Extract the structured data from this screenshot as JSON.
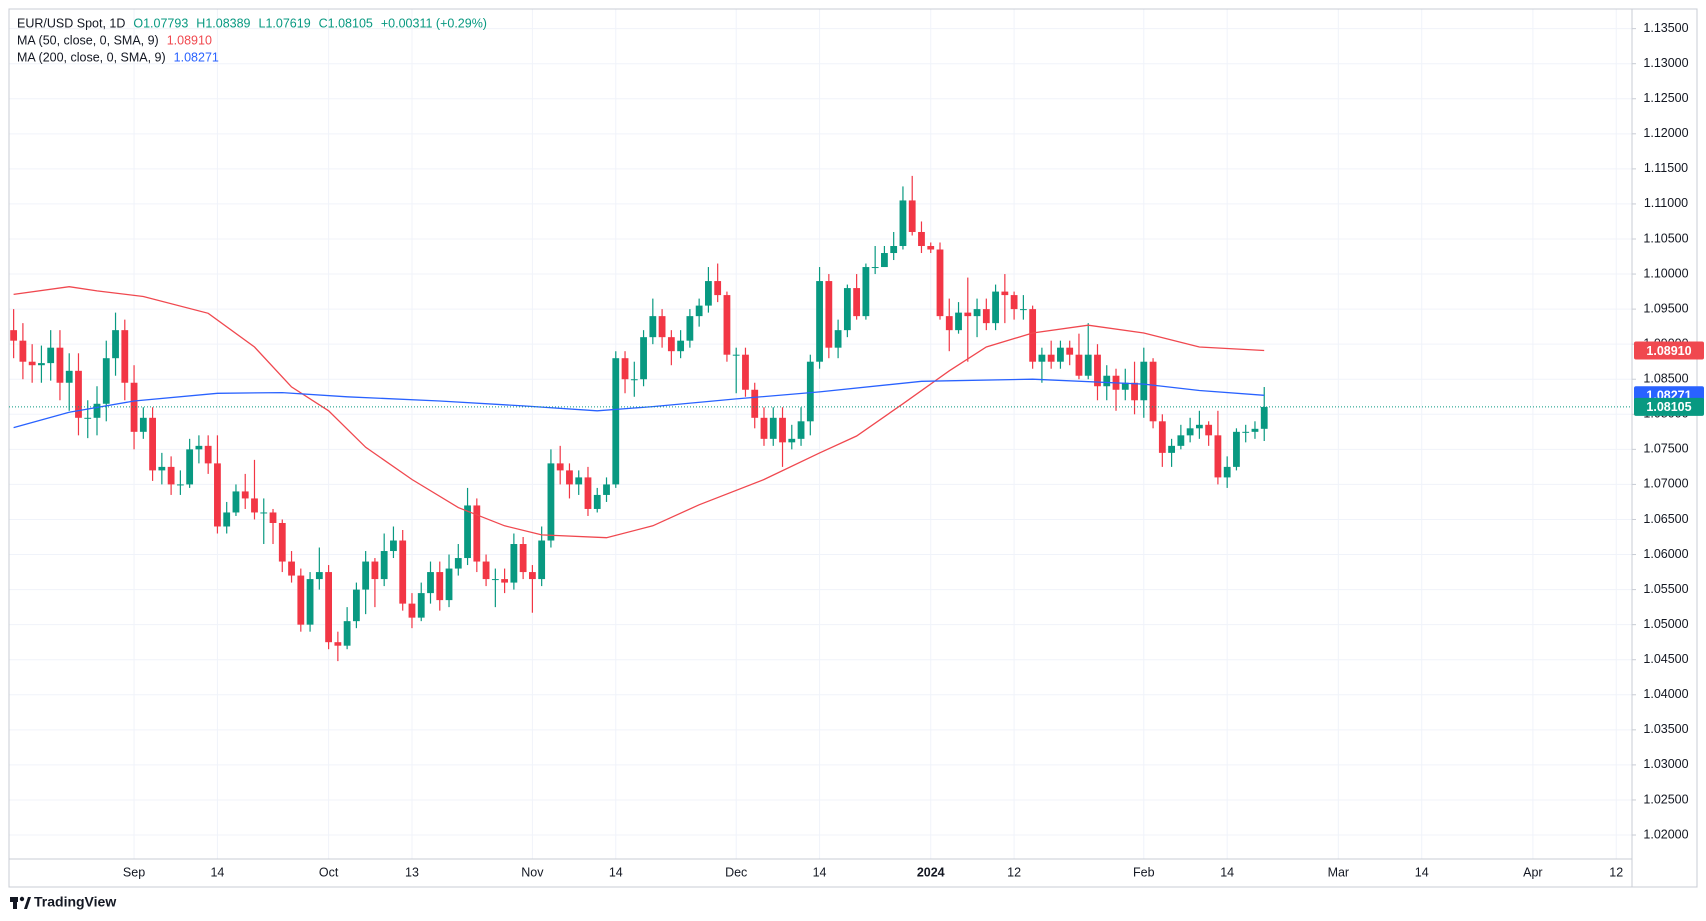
{
  "chart_data": {
    "type": "candlestick",
    "symbol": "EUR/USD Spot, 1D",
    "ohlc_labels": [
      "O1.07793",
      "H1.08389",
      "L1.07619",
      "C1.08105"
    ],
    "change_label": "+0.00311 (+0.29%)",
    "price_label": "1.08105",
    "up_color": "#089981",
    "down_color": "#f23645",
    "grid": true,
    "brand": "TradingView",
    "x": [
      -13,
      -12,
      -11,
      -10,
      -9,
      -8,
      -7,
      -6,
      -5,
      -4,
      -3,
      -2,
      -1,
      0,
      1,
      2,
      3,
      4,
      5,
      6,
      7,
      8,
      9,
      10,
      11,
      12,
      13,
      14,
      15,
      16,
      17,
      18,
      19,
      20,
      21,
      22,
      23,
      24,
      25,
      26,
      27,
      28,
      29,
      30,
      31,
      32,
      33,
      34,
      35,
      36,
      37,
      38,
      39,
      40,
      41,
      42,
      43,
      44,
      45,
      46,
      47,
      48,
      49,
      50,
      51,
      52,
      53,
      54,
      55,
      56,
      57,
      58,
      59,
      60,
      61,
      62,
      63,
      64,
      65,
      66,
      67,
      68,
      69,
      70,
      71,
      72,
      73,
      74,
      75,
      76,
      77,
      78,
      79,
      80,
      81,
      82,
      83,
      84,
      85,
      86,
      87,
      88,
      89,
      90,
      91,
      92,
      93,
      94,
      95,
      96,
      97,
      98,
      99,
      100,
      101,
      102,
      103,
      104,
      105,
      106,
      107,
      108,
      109,
      110,
      111,
      112,
      113,
      114,
      115,
      116,
      117,
      118,
      119,
      120,
      121,
      122
    ],
    "open": [
      1.092,
      1.0905,
      1.0875,
      1.087,
      1.0873,
      1.0895,
      1.0845,
      1.0862,
      1.0795,
      1.0795,
      1.0815,
      1.088,
      1.092,
      1.0845,
      1.0775,
      1.0795,
      1.072,
      1.0725,
      1.07,
      1.07,
      1.075,
      1.0755,
      1.073,
      1.064,
      1.066,
      1.069,
      1.068,
      1.066,
      1.066,
      1.0645,
      1.059,
      1.057,
      1.05,
      1.0565,
      1.0575,
      1.0475,
      1.047,
      1.0505,
      1.055,
      1.059,
      1.0565,
      1.0605,
      1.062,
      1.053,
      1.051,
      1.0545,
      1.0575,
      1.0535,
      1.058,
      1.0595,
      1.067,
      1.059,
      1.0565,
      1.0565,
      1.056,
      1.0615,
      1.0575,
      1.0565,
      1.062,
      1.073,
      1.072,
      1.07,
      1.071,
      1.0665,
      1.0685,
      1.07,
      1.088,
      1.085,
      1.085,
      1.091,
      1.094,
      1.091,
      1.089,
      1.0905,
      1.094,
      1.0955,
      1.099,
      1.097,
      1.0885,
      1.0885,
      1.0835,
      1.0795,
      1.0765,
      1.0795,
      1.076,
      1.0765,
      1.079,
      1.0875,
      1.099,
      1.0895,
      1.092,
      1.098,
      1.094,
      1.101,
      1.101,
      1.103,
      1.104,
      1.1105,
      1.106,
      1.104,
      1.1035,
      1.094,
      1.092,
      1.0945,
      1.094,
      1.095,
      1.093,
      1.0975,
      1.097,
      1.095,
      1.095,
      1.0875,
      1.0885,
      1.0875,
      1.0895,
      1.0885,
      1.0855,
      1.0885,
      1.084,
      1.0855,
      1.0835,
      1.0845,
      1.082,
      1.0875,
      1.079,
      1.0745,
      1.0755,
      1.077,
      1.078,
      1.0785,
      1.077,
      1.071,
      1.0725,
      1.0775,
      1.0775,
      1.07793
    ],
    "high": [
      1.095,
      1.093,
      1.09,
      1.0898,
      1.092,
      1.092,
      1.0887,
      1.0887,
      1.082,
      1.084,
      1.0905,
      1.0945,
      1.0935,
      1.087,
      1.081,
      1.081,
      1.0745,
      1.074,
      1.072,
      1.0765,
      1.077,
      1.077,
      1.077,
      1.0675,
      1.07,
      1.0715,
      1.0735,
      1.068,
      1.0665,
      1.065,
      1.0605,
      1.058,
      1.0575,
      1.061,
      1.0585,
      1.049,
      1.0525,
      1.056,
      1.0605,
      1.0595,
      1.063,
      1.064,
      1.0635,
      1.0545,
      1.056,
      1.059,
      1.059,
      1.06,
      1.0615,
      1.0695,
      1.068,
      1.06,
      1.058,
      1.058,
      1.063,
      1.0625,
      1.0585,
      1.064,
      1.075,
      1.0755,
      1.073,
      1.072,
      1.0725,
      1.0695,
      1.071,
      1.089,
      1.089,
      1.0875,
      1.092,
      1.0965,
      1.095,
      1.092,
      1.092,
      1.095,
      1.0965,
      1.101,
      1.1015,
      1.0975,
      1.0895,
      1.0895,
      1.0845,
      1.081,
      1.081,
      1.081,
      1.0785,
      1.081,
      1.0885,
      1.101,
      1.1,
      1.0935,
      1.0985,
      1.1,
      1.1015,
      1.104,
      1.104,
      1.106,
      1.1125,
      1.114,
      1.1075,
      1.1045,
      1.1045,
      1.0965,
      1.096,
      1.0995,
      1.0965,
      1.0965,
      1.0985,
      1.1,
      1.0975,
      1.097,
      1.0955,
      1.0895,
      1.0905,
      1.0905,
      1.0905,
      1.0915,
      1.093,
      1.09,
      1.087,
      1.0865,
      1.0865,
      1.0875,
      1.0895,
      1.088,
      1.08,
      1.0765,
      1.0785,
      1.0795,
      1.0805,
      1.079,
      1.0805,
      1.074,
      1.078,
      1.0785,
      1.079,
      1.08389
    ],
    "low": [
      1.088,
      1.085,
      1.0845,
      1.0845,
      1.0848,
      1.082,
      1.0805,
      1.077,
      1.0766,
      1.077,
      1.079,
      1.0855,
      1.082,
      1.075,
      1.0765,
      1.0705,
      1.07,
      1.0685,
      1.0685,
      1.0695,
      1.073,
      1.0715,
      1.063,
      1.063,
      1.0655,
      1.0665,
      1.065,
      1.0615,
      1.0615,
      1.0575,
      1.056,
      1.049,
      1.049,
      1.055,
      1.0465,
      1.0448,
      1.0465,
      1.0495,
      1.0515,
      1.0525,
      1.0555,
      1.0595,
      1.052,
      1.0495,
      1.0505,
      1.053,
      1.052,
      1.0525,
      1.057,
      1.0585,
      1.0575,
      1.0555,
      1.0525,
      1.0545,
      1.055,
      1.0565,
      1.0517,
      1.0555,
      1.061,
      1.07,
      1.068,
      1.0685,
      1.0655,
      1.066,
      1.0675,
      1.0695,
      1.083,
      1.0825,
      1.084,
      1.09,
      1.0895,
      1.087,
      1.088,
      1.0895,
      1.0925,
      1.0945,
      1.096,
      1.0875,
      1.083,
      1.0825,
      1.078,
      1.0755,
      1.0755,
      1.0725,
      1.075,
      1.0755,
      1.077,
      1.0865,
      1.088,
      1.088,
      1.091,
      1.0935,
      1.0935,
      1.1,
      1.1015,
      1.102,
      1.1035,
      1.1055,
      1.103,
      1.103,
      1.0935,
      1.089,
      1.0915,
      1.0875,
      1.091,
      1.092,
      1.092,
      1.093,
      1.0935,
      1.0935,
      1.0865,
      1.0845,
      1.0865,
      1.0865,
      1.087,
      1.085,
      1.085,
      1.082,
      1.082,
      1.0805,
      1.082,
      1.08,
      1.0795,
      1.078,
      1.0725,
      1.0725,
      1.075,
      1.076,
      1.0765,
      1.0755,
      1.07,
      1.0695,
      1.072,
      1.076,
      1.0765,
      1.07619
    ],
    "close": [
      1.0905,
      1.0875,
      1.087,
      1.0873,
      1.0895,
      1.0845,
      1.0862,
      1.0795,
      1.0795,
      1.0815,
      1.088,
      1.092,
      1.0845,
      1.0775,
      1.0795,
      1.072,
      1.0725,
      1.07,
      1.07,
      1.075,
      1.0755,
      1.073,
      1.064,
      1.066,
      1.069,
      1.068,
      1.066,
      1.066,
      1.0645,
      1.059,
      1.057,
      1.05,
      1.0565,
      1.0575,
      1.0475,
      1.047,
      1.0505,
      1.055,
      1.059,
      1.0565,
      1.0605,
      1.062,
      1.053,
      1.051,
      1.0545,
      1.0575,
      1.0535,
      1.058,
      1.0595,
      1.067,
      1.059,
      1.0565,
      1.0565,
      1.056,
      1.0615,
      1.0575,
      1.0565,
      1.062,
      1.073,
      1.072,
      1.07,
      1.071,
      1.0665,
      1.0685,
      1.07,
      1.088,
      1.085,
      1.085,
      1.091,
      1.094,
      1.091,
      1.089,
      1.0905,
      1.094,
      1.0955,
      1.099,
      1.097,
      1.0885,
      1.0885,
      1.0835,
      1.0795,
      1.0765,
      1.0795,
      1.076,
      1.0765,
      1.079,
      1.0875,
      1.099,
      1.0895,
      1.092,
      1.098,
      1.094,
      1.101,
      1.101,
      1.103,
      1.104,
      1.1105,
      1.106,
      1.104,
      1.1035,
      1.094,
      1.092,
      1.0945,
      1.094,
      1.095,
      1.093,
      1.0975,
      1.097,
      1.095,
      1.095,
      1.0875,
      1.0885,
      1.0875,
      1.0895,
      1.0885,
      1.0855,
      1.0885,
      1.084,
      1.0855,
      1.0835,
      1.0845,
      1.082,
      1.0875,
      1.079,
      1.0745,
      1.0755,
      1.077,
      1.078,
      1.0785,
      1.077,
      1.071,
      1.0725,
      1.0775,
      1.0775,
      1.07793,
      1.08105
    ],
    "series": [
      {
        "name": "MA (50, close, 0, SMA, 9)",
        "color": "#f0484f",
        "last_label": "1.08910",
        "x": [
          -13,
          -7,
          -4,
          1,
          8,
          13,
          17,
          21,
          25,
          30,
          35,
          40,
          44,
          51,
          56,
          61,
          68,
          74,
          78,
          83,
          88,
          92,
          97,
          103,
          109,
          115,
          122
        ],
        "values": [
          1.0971,
          1.0982,
          1.0976,
          1.0968,
          1.0944,
          1.0896,
          1.0839,
          1.0805,
          1.0753,
          1.0707,
          1.0667,
          1.0641,
          1.0628,
          1.0624,
          1.0641,
          1.0671,
          1.0707,
          1.0745,
          1.0769,
          1.0815,
          1.0862,
          1.0896,
          1.0916,
          1.0927,
          1.0916,
          1.0896,
          1.0891
        ]
      },
      {
        "name": "MA (200, close, 0, SMA, 9)",
        "color": "#2962ff",
        "last_label": "1.08271",
        "x": [
          -13,
          -7,
          0,
          9,
          16,
          23,
          33,
          42,
          50,
          56,
          65,
          74,
          85,
          97,
          109,
          115,
          122
        ],
        "values": [
          1.0781,
          1.0803,
          1.0819,
          1.083,
          1.0831,
          1.0825,
          1.0819,
          1.0812,
          1.0805,
          1.0811,
          1.0822,
          1.0832,
          1.0847,
          1.085,
          1.0843,
          1.0834,
          1.08271
        ]
      }
    ],
    "xlim": [
      -13.5,
      161.7
    ],
    "ylim": [
      1.01658,
      1.1378
    ],
    "xticks": [
      {
        "value": 0,
        "label": "Sep"
      },
      {
        "value": 9,
        "label": "14"
      },
      {
        "value": 21,
        "label": "Oct"
      },
      {
        "value": 30,
        "label": "13"
      },
      {
        "value": 43,
        "label": "Nov"
      },
      {
        "value": 52,
        "label": "14"
      },
      {
        "value": 65,
        "label": "Dec"
      },
      {
        "value": 74,
        "label": "14"
      },
      {
        "value": 86,
        "label": "2024"
      },
      {
        "value": 95,
        "label": "12"
      },
      {
        "value": 109,
        "label": "Feb"
      },
      {
        "value": 118,
        "label": "14"
      },
      {
        "value": 130,
        "label": "Mar"
      },
      {
        "value": 139,
        "label": "14"
      },
      {
        "value": 151,
        "label": "Apr"
      },
      {
        "value": 160,
        "label": "12"
      }
    ],
    "yticks": [
      {
        "value": 1.02,
        "label": "1.02000"
      },
      {
        "value": 1.025,
        "label": "1.02500"
      },
      {
        "value": 1.03,
        "label": "1.03000"
      },
      {
        "value": 1.035,
        "label": "1.03500"
      },
      {
        "value": 1.04,
        "label": "1.04000"
      },
      {
        "value": 1.045,
        "label": "1.04500"
      },
      {
        "value": 1.05,
        "label": "1.05000"
      },
      {
        "value": 1.055,
        "label": "1.05500"
      },
      {
        "value": 1.06,
        "label": "1.06000"
      },
      {
        "value": 1.065,
        "label": "1.06500"
      },
      {
        "value": 1.07,
        "label": "1.07000"
      },
      {
        "value": 1.075,
        "label": "1.07500"
      },
      {
        "value": 1.08,
        "label": "1.08000"
      },
      {
        "value": 1.085,
        "label": "1.08500"
      },
      {
        "value": 1.09,
        "label": "1.09000"
      },
      {
        "value": 1.095,
        "label": "1.09500"
      },
      {
        "value": 1.1,
        "label": "1.10000"
      },
      {
        "value": 1.105,
        "label": "1.10500"
      },
      {
        "value": 1.11,
        "label": "1.11000"
      },
      {
        "value": 1.115,
        "label": "1.11500"
      },
      {
        "value": 1.12,
        "label": "1.12000"
      },
      {
        "value": 1.125,
        "label": "1.12500"
      },
      {
        "value": 1.13,
        "label": "1.13000"
      },
      {
        "value": 1.135,
        "label": "1.13500"
      }
    ]
  }
}
